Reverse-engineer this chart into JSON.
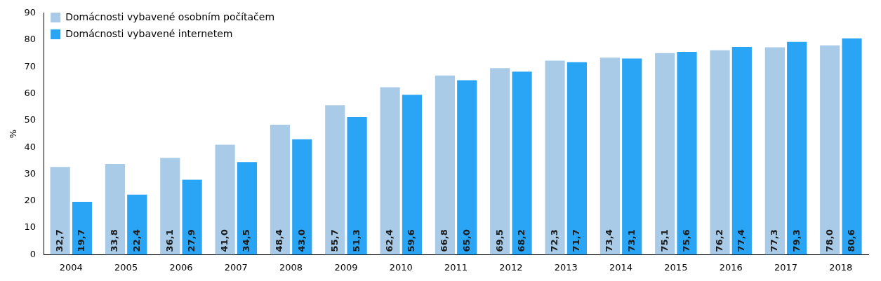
{
  "chart_data": {
    "type": "bar",
    "ylabel": "%",
    "categories": [
      "2004",
      "2005",
      "2006",
      "2007",
      "2008",
      "2009",
      "2010",
      "2011",
      "2012",
      "2013",
      "2014",
      "2015",
      "2016",
      "2017",
      "2018"
    ],
    "series": [
      {
        "name": "Domácnosti vybavené osobním počítačem",
        "color": "#a9cbe8",
        "values": [
          32.7,
          33.8,
          36.1,
          41.0,
          48.4,
          55.7,
          62.4,
          66.8,
          69.5,
          72.3,
          73.4,
          75.1,
          76.2,
          77.3,
          78.0
        ],
        "value_labels": [
          "32,7",
          "33,8",
          "36,1",
          "41,0",
          "48,4",
          "55,7",
          "62,4",
          "66,8",
          "69,5",
          "72,3",
          "73,4",
          "75,1",
          "76,2",
          "77,3",
          "78,0"
        ]
      },
      {
        "name": "Domácnosti vybavené internetem",
        "color": "#2aa4f4",
        "values": [
          19.7,
          22.4,
          27.9,
          34.5,
          43.0,
          51.3,
          59.6,
          65.0,
          68.2,
          71.7,
          73.1,
          75.6,
          77.4,
          79.3,
          80.6
        ],
        "value_labels": [
          "19,7",
          "22,4",
          "27,9",
          "34,5",
          "43,0",
          "51,3",
          "59,6",
          "65,0",
          "68,2",
          "71,7",
          "73,1",
          "75,6",
          "77,4",
          "79,3",
          "80,6"
        ]
      }
    ],
    "ylim": [
      0,
      90
    ],
    "yticks": [
      0,
      10,
      20,
      30,
      40,
      50,
      60,
      70,
      80,
      90
    ],
    "grid": false,
    "legend": "top left"
  }
}
